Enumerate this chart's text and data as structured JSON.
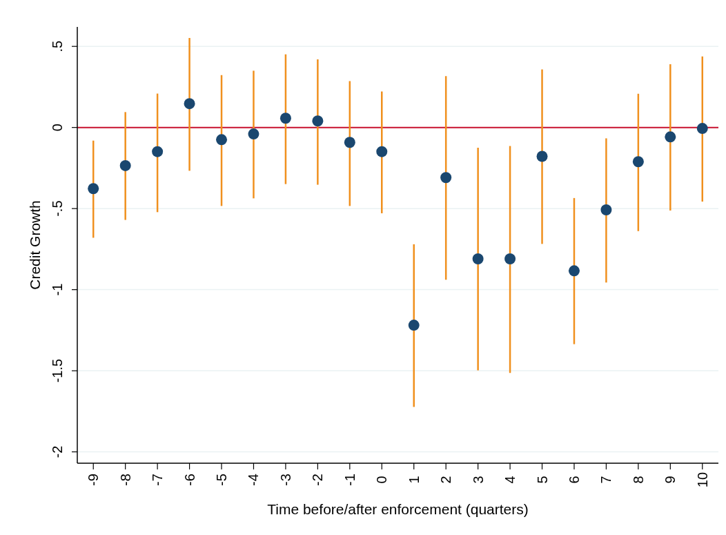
{
  "chart_data": {
    "type": "scatter",
    "xlabel": "Time before/after enforcement (quarters)",
    "ylabel": "Credit Growth",
    "x": [
      -9,
      -8,
      -7,
      -6,
      -5,
      -4,
      -3,
      -2,
      -1,
      0,
      1,
      2,
      3,
      4,
      5,
      6,
      7,
      8,
      9,
      10
    ],
    "series": [
      {
        "color": "#1a476f",
        "values": [
          -0.377,
          -0.235,
          -0.149,
          0.147,
          -0.075,
          -0.04,
          0.057,
          0.04,
          -0.092,
          -0.149,
          -1.219,
          -0.309,
          -0.81,
          -0.81,
          -0.178,
          -0.884,
          -0.508,
          -0.211,
          -0.058,
          -0.006
        ],
        "errors": [
          [
            -0.68,
            -0.081
          ],
          [
            -0.57,
            0.095
          ],
          [
            -0.522,
            0.209
          ],
          [
            -0.267,
            0.552
          ],
          [
            -0.484,
            0.323
          ],
          [
            -0.437,
            0.35
          ],
          [
            -0.349,
            0.451
          ],
          [
            -0.353,
            0.42
          ],
          [
            -0.484,
            0.286
          ],
          [
            -0.529,
            0.222
          ],
          [
            -1.723,
            -0.72
          ],
          [
            -0.939,
            0.317
          ],
          [
            -1.497,
            -0.125
          ],
          [
            -1.513,
            -0.114
          ],
          [
            -0.718,
            0.358
          ],
          [
            -1.336,
            -0.435
          ],
          [
            -0.956,
            -0.067
          ],
          [
            -0.639,
            0.208
          ],
          [
            -0.512,
            0.39
          ],
          [
            -0.457,
            0.438
          ]
        ]
      }
    ],
    "marker": "circle",
    "xlim": [
      -9.5,
      10.5
    ],
    "xticks": [
      -9,
      -8,
      -7,
      -6,
      -5,
      -4,
      -3,
      -2,
      -1,
      0,
      1,
      2,
      3,
      4,
      5,
      6,
      7,
      8,
      9,
      10
    ],
    "ylim": [
      -2.07,
      0.62
    ],
    "yticks": [
      {
        "value": 0.5,
        "label": ".5"
      },
      0,
      {
        "value": -0.5,
        "label": "-.5"
      },
      -1,
      -1.5,
      -2
    ],
    "grid": "y",
    "ref_lines": [
      {
        "axis": "y",
        "value": 0,
        "color": "#c8102e"
      }
    ]
  }
}
